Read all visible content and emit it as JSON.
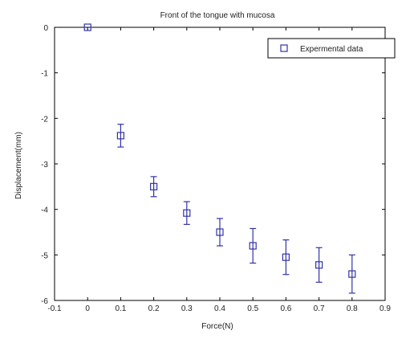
{
  "chart_data": {
    "type": "scatter",
    "title": "Front of the tongue with mucosa",
    "xlabel": "Force(N)",
    "ylabel": "Displacement(mm)",
    "xlim": [
      -0.1,
      0.9
    ],
    "ylim": [
      -6,
      0
    ],
    "xticks": [
      "-0.1",
      "0",
      "0.1",
      "0.2",
      "0.3",
      "0.4",
      "0.5",
      "0.6",
      "0.7",
      "0.8",
      "0.9"
    ],
    "yticks": [
      "0",
      "-1",
      "-2",
      "-3",
      "-4",
      "-5",
      "-6"
    ],
    "grid": false,
    "legend_position": "top-right",
    "series": [
      {
        "name": "Expermental data",
        "color": "#3333aa",
        "marker": "square",
        "x": [
          0,
          0.1,
          0.2,
          0.3,
          0.4,
          0.5,
          0.6,
          0.7,
          0.8
        ],
        "y": [
          0,
          -2.38,
          -3.5,
          -4.08,
          -4.5,
          -4.8,
          -5.05,
          -5.22,
          -5.42
        ],
        "error_low": [
          0,
          0.25,
          0.22,
          0.25,
          0.3,
          0.38,
          0.38,
          0.38,
          0.42
        ],
        "error_high": [
          0,
          0.25,
          0.22,
          0.25,
          0.3,
          0.38,
          0.38,
          0.38,
          0.42
        ]
      }
    ]
  }
}
